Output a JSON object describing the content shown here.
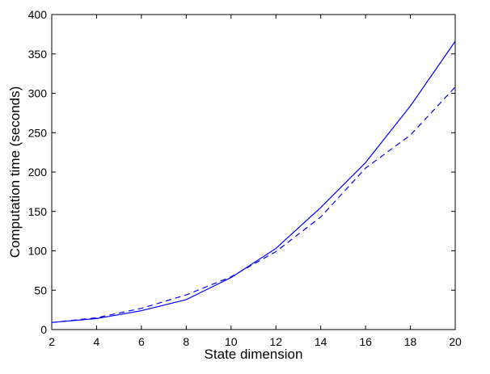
{
  "chart_data": {
    "type": "line",
    "title": "",
    "xlabel": "State dimension",
    "ylabel": "Computation time (seconds)",
    "xlim": [
      2,
      20
    ],
    "ylim": [
      0,
      400
    ],
    "x_ticks": [
      "2",
      "4",
      "6",
      "8",
      "10",
      "12",
      "14",
      "16",
      "18",
      "20"
    ],
    "y_ticks": [
      "0",
      "50",
      "100",
      "150",
      "200",
      "250",
      "300",
      "350",
      "400"
    ],
    "grid": false,
    "legend": "none",
    "series": [
      {
        "style": "solid",
        "color": "#0000ff",
        "x": [
          2,
          4,
          6,
          8,
          10,
          12,
          14,
          16,
          18,
          20
        ],
        "y": [
          9,
          14,
          24,
          38,
          66,
          103,
          155,
          212,
          284,
          366
        ]
      },
      {
        "style": "dashed",
        "color": "#0000ff",
        "x": [
          2,
          4,
          6,
          8,
          10,
          12,
          14,
          16,
          18,
          20
        ],
        "y": [
          9,
          15,
          27,
          44,
          67,
          99,
          143,
          205,
          247,
          308
        ]
      }
    ]
  }
}
